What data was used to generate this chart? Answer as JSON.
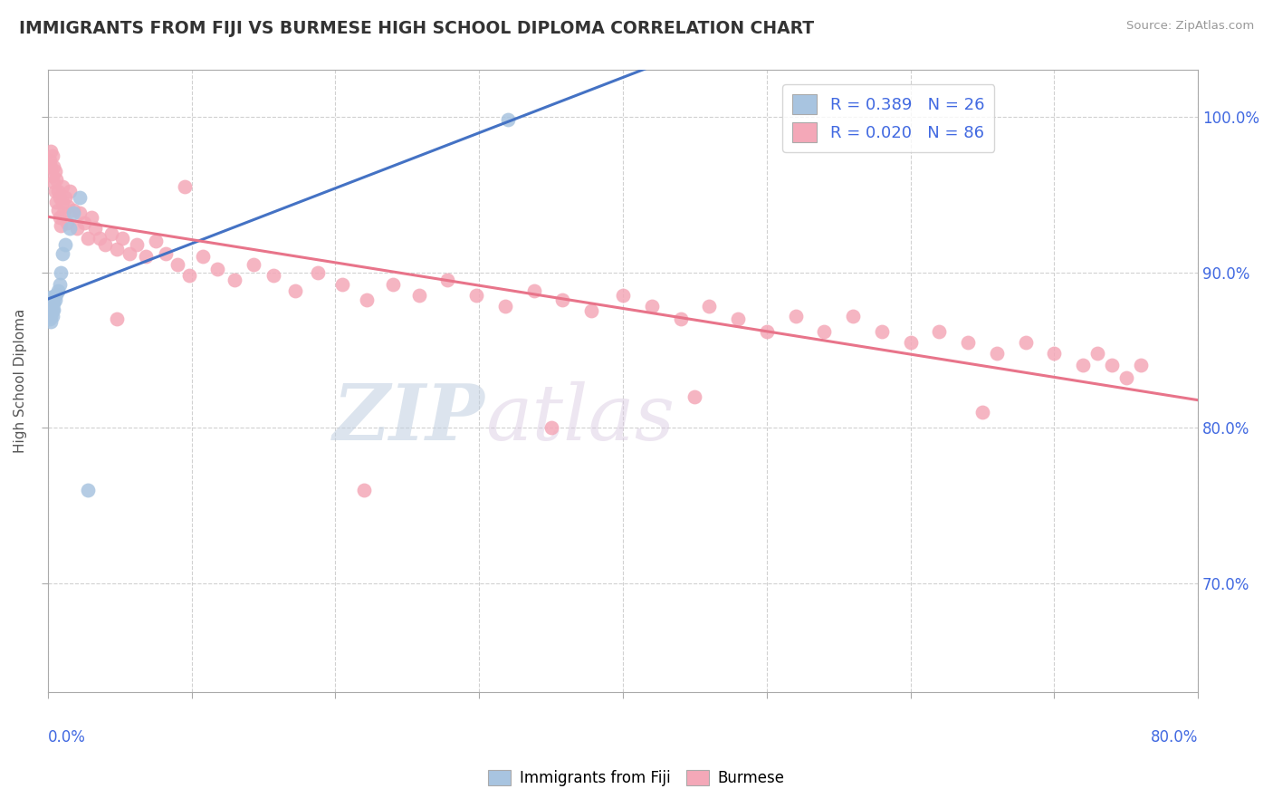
{
  "title": "IMMIGRANTS FROM FIJI VS BURMESE HIGH SCHOOL DIPLOMA CORRELATION CHART",
  "source": "Source: ZipAtlas.com",
  "ylabel": "High School Diploma",
  "legend_label_fiji": "Immigrants from Fiji",
  "legend_label_burmese": "Burmese",
  "xmin": 0.0,
  "xmax": 0.8,
  "ymin": 0.63,
  "ymax": 1.03,
  "fiji_R": 0.389,
  "fiji_N": 26,
  "burmese_R": 0.02,
  "burmese_N": 86,
  "fiji_color": "#a8c4e0",
  "burmese_color": "#f4a8b8",
  "fiji_line_color": "#4472c4",
  "burmese_line_color": "#e8748a",
  "watermark_zip": "ZIP",
  "watermark_atlas": "atlas",
  "fiji_x": [
    0.001,
    0.001,
    0.002,
    0.002,
    0.002,
    0.002,
    0.002,
    0.003,
    0.003,
    0.003,
    0.003,
    0.004,
    0.004,
    0.004,
    0.005,
    0.006,
    0.007,
    0.008,
    0.009,
    0.01,
    0.012,
    0.015,
    0.018,
    0.022,
    0.028,
    0.32
  ],
  "fiji_y": [
    0.87,
    0.878,
    0.868,
    0.872,
    0.875,
    0.88,
    0.884,
    0.872,
    0.876,
    0.88,
    0.884,
    0.876,
    0.88,
    0.884,
    0.882,
    0.886,
    0.888,
    0.892,
    0.9,
    0.912,
    0.918,
    0.928,
    0.938,
    0.948,
    0.76,
    0.998
  ],
  "burmese_x": [
    0.001,
    0.002,
    0.002,
    0.003,
    0.003,
    0.004,
    0.004,
    0.005,
    0.005,
    0.006,
    0.006,
    0.007,
    0.007,
    0.008,
    0.008,
    0.009,
    0.01,
    0.01,
    0.011,
    0.012,
    0.013,
    0.014,
    0.015,
    0.018,
    0.02,
    0.022,
    0.025,
    0.028,
    0.03,
    0.033,
    0.036,
    0.04,
    0.044,
    0.048,
    0.052,
    0.057,
    0.062,
    0.068,
    0.075,
    0.082,
    0.09,
    0.098,
    0.108,
    0.118,
    0.13,
    0.143,
    0.157,
    0.172,
    0.188,
    0.205,
    0.222,
    0.24,
    0.258,
    0.278,
    0.298,
    0.318,
    0.338,
    0.358,
    0.378,
    0.4,
    0.42,
    0.44,
    0.46,
    0.48,
    0.5,
    0.52,
    0.54,
    0.56,
    0.58,
    0.6,
    0.62,
    0.64,
    0.66,
    0.68,
    0.7,
    0.72,
    0.73,
    0.74,
    0.75,
    0.76,
    0.095,
    0.35,
    0.65,
    0.048,
    0.22,
    0.45
  ],
  "burmese_y": [
    0.972,
    0.968,
    0.978,
    0.962,
    0.975,
    0.958,
    0.968,
    0.952,
    0.965,
    0.945,
    0.96,
    0.94,
    0.952,
    0.935,
    0.948,
    0.93,
    0.945,
    0.955,
    0.938,
    0.948,
    0.932,
    0.942,
    0.952,
    0.94,
    0.928,
    0.938,
    0.932,
    0.922,
    0.935,
    0.928,
    0.922,
    0.918,
    0.925,
    0.915,
    0.922,
    0.912,
    0.918,
    0.91,
    0.92,
    0.912,
    0.905,
    0.898,
    0.91,
    0.902,
    0.895,
    0.905,
    0.898,
    0.888,
    0.9,
    0.892,
    0.882,
    0.892,
    0.885,
    0.895,
    0.885,
    0.878,
    0.888,
    0.882,
    0.875,
    0.885,
    0.878,
    0.87,
    0.878,
    0.87,
    0.862,
    0.872,
    0.862,
    0.872,
    0.862,
    0.855,
    0.862,
    0.855,
    0.848,
    0.855,
    0.848,
    0.84,
    0.848,
    0.84,
    0.832,
    0.84,
    0.955,
    0.8,
    0.81,
    0.87,
    0.76,
    0.82
  ]
}
